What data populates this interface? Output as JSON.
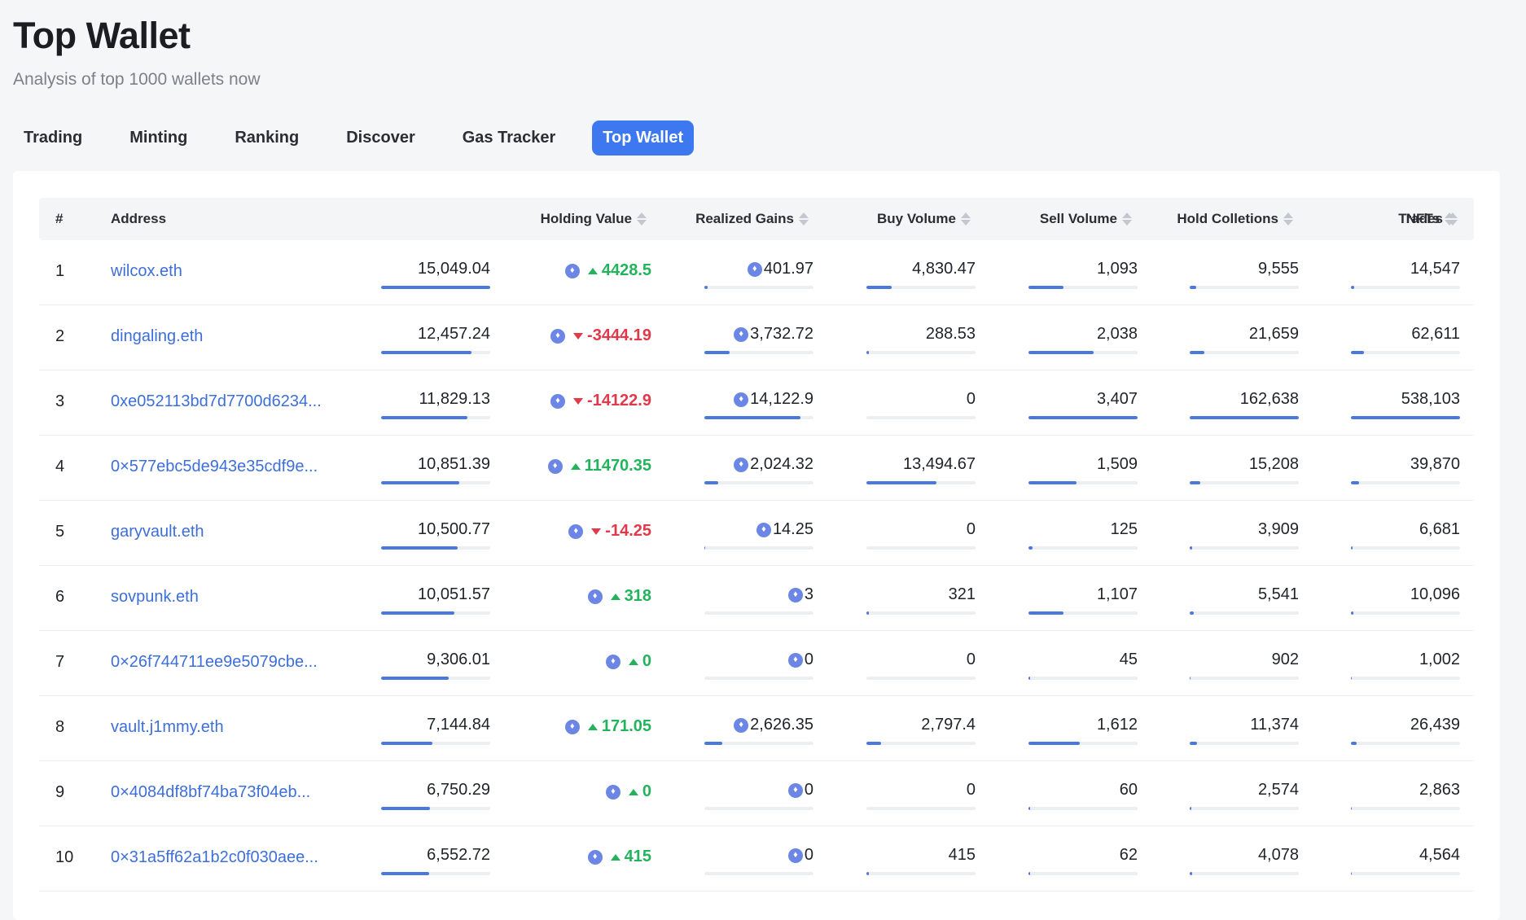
{
  "page": {
    "title": "Top Wallet",
    "subtitle": "Analysis of top 1000 wallets now"
  },
  "tabs": [
    {
      "label": "Trading",
      "active": false
    },
    {
      "label": "Minting",
      "active": false
    },
    {
      "label": "Ranking",
      "active": false
    },
    {
      "label": "Discover",
      "active": false
    },
    {
      "label": "Gas Tracker",
      "active": false
    },
    {
      "label": "Top Wallet",
      "active": true
    }
  ],
  "table": {
    "columns": {
      "rank": "#",
      "address": "Address",
      "holding": "Holding Value",
      "gains": "Realized Gains",
      "buy": "Buy Volume",
      "sell": "Sell Volume",
      "collections": "Hold Colletions",
      "nfts": "NFTs",
      "trades": "Trades"
    },
    "rows": [
      {
        "rank": "1",
        "address": "wilcox.eth",
        "holding": "15,049.04",
        "holding_pct": 1.0,
        "gains": "4428.5",
        "gains_dir": "up",
        "buy": "401.97",
        "buy_pct": 0.029,
        "sell": "4,830.47",
        "sell_pct": 0.23,
        "collections": "1,093",
        "collections_pct": 0.32,
        "nfts": "9,555",
        "nfts_pct": 0.06,
        "trades": "14,547",
        "trades_pct": 0.027
      },
      {
        "rank": "2",
        "address": "dingaling.eth",
        "holding": "12,457.24",
        "holding_pct": 0.83,
        "gains": "-3444.19",
        "gains_dir": "down",
        "buy": "3,732.72",
        "buy_pct": 0.23,
        "sell": "288.53",
        "sell_pct": 0.021,
        "collections": "2,038",
        "collections_pct": 0.6,
        "nfts": "21,659",
        "nfts_pct": 0.133,
        "trades": "62,611",
        "trades_pct": 0.116
      },
      {
        "rank": "3",
        "address": "0xe052113bd7d7700d6234...",
        "holding": "11,829.13",
        "holding_pct": 0.79,
        "gains": "-14122.9",
        "gains_dir": "down",
        "buy": "14,122.9",
        "buy_pct": 0.88,
        "sell": "0",
        "sell_pct": 0,
        "collections": "3,407",
        "collections_pct": 1.0,
        "nfts": "162,638",
        "nfts_pct": 1.0,
        "trades": "538,103",
        "trades_pct": 1.0
      },
      {
        "rank": "4",
        "address": "0×577ebc5de943e35cdf9e...",
        "holding": "10,851.39",
        "holding_pct": 0.72,
        "gains": "11470.35",
        "gains_dir": "up",
        "buy": "2,024.32",
        "buy_pct": 0.126,
        "sell": "13,494.67",
        "sell_pct": 0.64,
        "collections": "1,509",
        "collections_pct": 0.44,
        "nfts": "15,208",
        "nfts_pct": 0.094,
        "trades": "39,870",
        "trades_pct": 0.074
      },
      {
        "rank": "5",
        "address": "garyvault.eth",
        "holding": "10,500.77",
        "holding_pct": 0.7,
        "gains": "-14.25",
        "gains_dir": "down",
        "buy": "14.25",
        "buy_pct": 0.002,
        "sell": "0",
        "sell_pct": 0,
        "collections": "125",
        "collections_pct": 0.037,
        "nfts": "3,909",
        "nfts_pct": 0.024,
        "trades": "6,681",
        "trades_pct": 0.012
      },
      {
        "rank": "6",
        "address": "sovpunk.eth",
        "holding": "10,051.57",
        "holding_pct": 0.67,
        "gains": "318",
        "gains_dir": "up",
        "buy": "3",
        "buy_pct": 0.0,
        "sell": "321",
        "sell_pct": 0.02,
        "collections": "1,107",
        "collections_pct": 0.32,
        "nfts": "5,541",
        "nfts_pct": 0.034,
        "trades": "10,096",
        "trades_pct": 0.019
      },
      {
        "rank": "7",
        "address": "0×26f744711ee9e5079cbe...",
        "holding": "9,306.01",
        "holding_pct": 0.62,
        "gains": "0",
        "gains_dir": "up",
        "buy": "0",
        "buy_pct": 0,
        "sell": "0",
        "sell_pct": 0,
        "collections": "45",
        "collections_pct": 0.013,
        "nfts": "902",
        "nfts_pct": 0.006,
        "trades": "1,002",
        "trades_pct": 0.002
      },
      {
        "rank": "8",
        "address": "vault.j1mmy.eth",
        "holding": "7,144.84",
        "holding_pct": 0.47,
        "gains": "171.05",
        "gains_dir": "up",
        "buy": "2,626.35",
        "buy_pct": 0.163,
        "sell": "2,797.4",
        "sell_pct": 0.133,
        "collections": "1,612",
        "collections_pct": 0.47,
        "nfts": "11,374",
        "nfts_pct": 0.07,
        "trades": "26,439",
        "trades_pct": 0.049
      },
      {
        "rank": "9",
        "address": "0×4084df8bf74ba73f04eb...",
        "holding": "6,750.29",
        "holding_pct": 0.45,
        "gains": "0",
        "gains_dir": "up",
        "buy": "0",
        "buy_pct": 0,
        "sell": "0",
        "sell_pct": 0,
        "collections": "60",
        "collections_pct": 0.018,
        "nfts": "2,574",
        "nfts_pct": 0.016,
        "trades": "2,863",
        "trades_pct": 0.005
      },
      {
        "rank": "10",
        "address": "0×31a5ff62a1b2c0f030aee...",
        "holding": "6,552.72",
        "holding_pct": 0.44,
        "gains": "415",
        "gains_dir": "up",
        "buy": "0",
        "buy_pct": 0,
        "sell": "415",
        "sell_pct": 0.026,
        "collections": "62",
        "collections_pct": 0.018,
        "nfts": "4,078",
        "nfts_pct": 0.025,
        "trades": "4,564",
        "trades_pct": 0.008
      }
    ]
  },
  "icons": {
    "eth": "ethereum-icon",
    "sort": "sort-icon",
    "gain_up": "triangle-up-icon",
    "gain_down": "triangle-down-icon"
  },
  "colors": {
    "accent": "#3d78f0",
    "link": "#3d6fd8",
    "bar": "#4a78dd",
    "positive": "#22b35c",
    "negative": "#e0394a"
  }
}
